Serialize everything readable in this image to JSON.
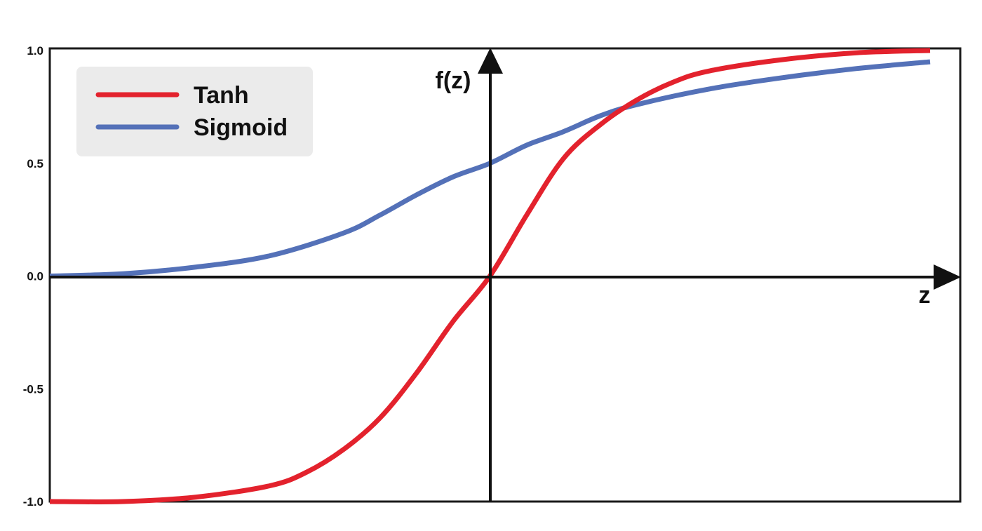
{
  "chart_data": {
    "type": "line",
    "title": "",
    "xlabel": "z",
    "ylabel": "f(z)",
    "ylim": [
      -1.0,
      1.0
    ],
    "xlim": [
      -6,
      6
    ],
    "y_ticks": [
      "1.0",
      "0.5",
      "0.0",
      "-0.5",
      "-1.0"
    ],
    "y_tick_values": [
      1.0,
      0.5,
      0.0,
      -0.5,
      -1.0
    ],
    "grid": false,
    "legend_position": "top-left",
    "series": [
      {
        "name": "Tanh",
        "color": "#e3222d",
        "x": [
          -6,
          -5,
          -4,
          -3,
          -2.5,
          -2,
          -1.5,
          -1,
          -0.5,
          0,
          0.5,
          1,
          1.5,
          2,
          2.5,
          3,
          4,
          5,
          6
        ],
        "values": [
          -1.0,
          -1.0,
          -0.98,
          -0.93,
          -0.87,
          -0.77,
          -0.63,
          -0.43,
          -0.2,
          0.0,
          0.27,
          0.52,
          0.67,
          0.78,
          0.86,
          0.91,
          0.96,
          0.99,
          1.0
        ]
      },
      {
        "name": "Sigmoid",
        "color": "#5471b8",
        "x": [
          -6,
          -5,
          -4,
          -3,
          -2,
          -1.5,
          -1,
          -0.5,
          0,
          0.5,
          1,
          1.5,
          2,
          3,
          4,
          5,
          6
        ],
        "values": [
          0.0,
          0.01,
          0.04,
          0.09,
          0.19,
          0.27,
          0.36,
          0.44,
          0.5,
          0.58,
          0.64,
          0.71,
          0.76,
          0.83,
          0.88,
          0.92,
          0.95
        ]
      }
    ]
  }
}
